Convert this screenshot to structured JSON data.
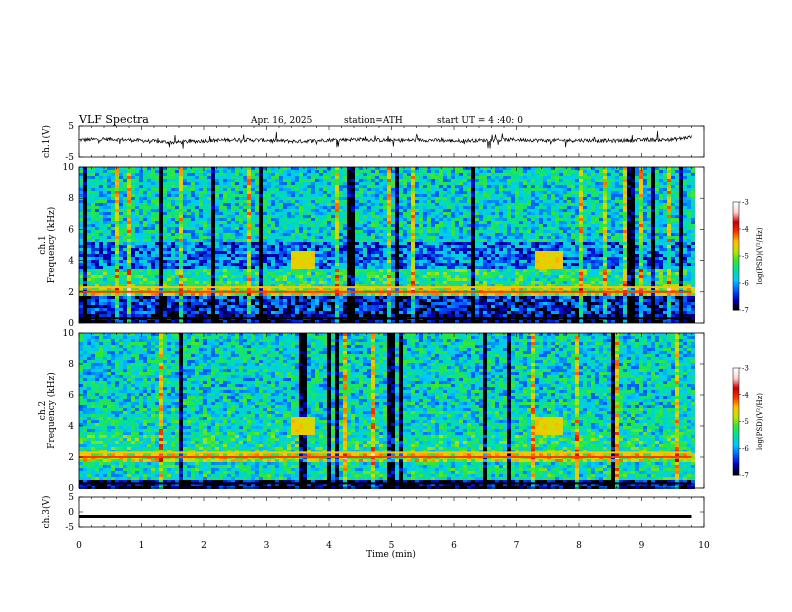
{
  "header": {
    "title": "VLF Spectra",
    "date": "Apr. 16, 2025",
    "station": "station=ATH",
    "start_ut": "start UT = 4 :40: 0"
  },
  "colors": {
    "waveform": "#000000",
    "background": "#ffffff",
    "colormap": [
      "#000000",
      "#0000c8",
      "#0060ff",
      "#00c8ff",
      "#00e0a0",
      "#30e830",
      "#c8e000",
      "#ffc000",
      "#ff3000",
      "#c80000",
      "#ffd0d0",
      "#ffffff"
    ]
  },
  "chart_data": [
    {
      "type": "line",
      "panel": "ch1-waveform",
      "ylabel": "ch.1(V)",
      "ylim": [
        -5,
        5
      ],
      "yticks": [
        "5",
        "-5"
      ],
      "xlim": [
        0,
        10
      ],
      "series": [
        {
          "x": [
            0,
            0.5,
            1,
            1.5,
            2,
            2.5,
            3,
            3.5,
            4,
            4.5,
            5,
            5.5,
            6,
            6.5,
            7,
            7.5,
            8,
            8.5,
            9,
            9.5,
            9.8
          ],
          "values": [
            0.5,
            0.8,
            0.3,
            -0.3,
            0.2,
            0.6,
            0.4,
            0.0,
            0.5,
            0.7,
            0.3,
            0.5,
            0.2,
            0.4,
            0.6,
            0.3,
            0.4,
            0.2,
            0.5,
            0.6,
            1.5
          ]
        }
      ]
    },
    {
      "type": "heatmap",
      "panel": "ch1-spectrogram",
      "ylabel": "ch.1\nFrequency (kHz)",
      "ylim": [
        0,
        10
      ],
      "yticks": [
        "0",
        "2",
        "4",
        "6",
        "8",
        "10"
      ],
      "xlim": [
        0,
        9.8
      ],
      "colorbar": {
        "label": "log(PSD)(V²/Hz)",
        "range": [
          -7,
          -3
        ],
        "ticks": [
          "-3",
          "-4",
          "-5",
          "-6",
          "-7"
        ]
      }
    },
    {
      "type": "heatmap",
      "panel": "ch2-spectrogram",
      "ylabel": "ch.2\nFrequency (kHz)",
      "ylim": [
        0,
        10
      ],
      "yticks": [
        "0",
        "2",
        "4",
        "6",
        "8",
        "10"
      ],
      "xlim": [
        0,
        9.8
      ],
      "colorbar": {
        "label": "log(PSD)(V²/Hz)",
        "range": [
          -7,
          -3
        ],
        "ticks": [
          "-3",
          "-4",
          "-5",
          "-6",
          "-7"
        ]
      }
    },
    {
      "type": "line",
      "panel": "ch3-waveform",
      "ylabel": "ch.3(V)",
      "ylim": [
        -5,
        5
      ],
      "yticks": [
        "5",
        "0",
        "-5"
      ],
      "xlim": [
        0,
        10
      ],
      "series": [
        {
          "x": [
            0,
            9.8
          ],
          "values": [
            -1.5,
            -1.5
          ]
        }
      ]
    }
  ],
  "xaxis": {
    "label": "Time (min)",
    "ticks": [
      "0",
      "1",
      "2",
      "3",
      "4",
      "5",
      "6",
      "7",
      "8",
      "9",
      "10"
    ]
  }
}
